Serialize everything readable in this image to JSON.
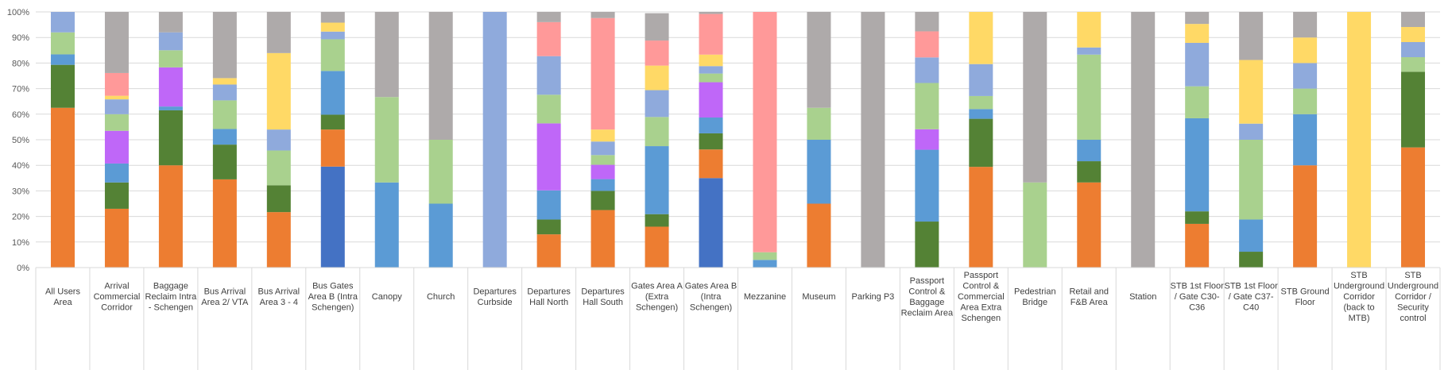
{
  "chart_data": {
    "type": "bar",
    "stacked": true,
    "percent": true,
    "ylim": [
      0,
      100
    ],
    "yticks": [
      "0%",
      "10%",
      "20%",
      "30%",
      "40%",
      "50%",
      "60%",
      "70%",
      "80%",
      "90%",
      "100%"
    ],
    "grid": true,
    "legend": "none",
    "categories": [
      [
        "All Users",
        "Area"
      ],
      [
        "Arrival",
        "Commercial",
        "Corridor"
      ],
      [
        "Baggage",
        "Reclaim Intra",
        "- Schengen"
      ],
      [
        "Bus Arrival",
        "Area 2/ VTA"
      ],
      [
        "Bus Arrival",
        "Area 3 - 4"
      ],
      [
        "Bus Gates",
        "Area B (Intra",
        "Schengen)"
      ],
      [
        "Canopy"
      ],
      [
        "Church"
      ],
      [
        "Departures",
        "Curbside"
      ],
      [
        "Departures",
        "Hall North"
      ],
      [
        "Departures",
        "Hall South"
      ],
      [
        "Gates Area A",
        "(Extra",
        "Schengen)"
      ],
      [
        "Gates Area B",
        "(Intra",
        "Schengen)"
      ],
      [
        "Mezzanine"
      ],
      [
        "Museum"
      ],
      [
        "Parking P3"
      ],
      [
        "Passport",
        "Control &",
        "Baggage",
        "Reclaim Area"
      ],
      [
        "Passport",
        "Control &",
        "Commercial",
        "Area Extra",
        "Schengen"
      ],
      [
        "Pedestrian",
        "Bridge"
      ],
      [
        "Retail and",
        "F&B Area"
      ],
      [
        "Station"
      ],
      [
        "STB 1st Floor",
        "/ Gate C30-",
        "C36"
      ],
      [
        "STB 1st Floor",
        "/ Gate C37-",
        "C40"
      ],
      [
        "STB Ground",
        "Floor"
      ],
      [
        "STB",
        "Underground",
        "Corridor",
        "(back to",
        "MTB)"
      ],
      [
        "STB",
        "Underground",
        "Corridor /",
        "Security",
        "control"
      ]
    ],
    "series_colors": [
      "#4472C4",
      "#ED7D31",
      "#548235",
      "#5B9BD5",
      "#BF67F8",
      "#A9D18E",
      "#8FAADC",
      "#FFD966",
      "#FF9999",
      "#AEAAAA"
    ],
    "series": [
      {
        "values": [
          0,
          0,
          0,
          0,
          0,
          39.5,
          0,
          0,
          0,
          0,
          0,
          0,
          35,
          0,
          0,
          0,
          0,
          0,
          0,
          0,
          0,
          0,
          0,
          0,
          0,
          0
        ]
      },
      {
        "values": [
          62.5,
          23,
          40,
          34.5,
          21.7,
          14.5,
          0,
          0,
          0,
          13,
          22.5,
          16,
          11.2,
          0,
          25,
          0,
          0,
          39.4,
          0,
          33.3,
          0,
          17.1,
          0,
          40,
          0,
          47
        ]
      },
      {
        "values": [
          16.8,
          10.3,
          21.5,
          13.6,
          10.5,
          5.8,
          0,
          0,
          0,
          5.8,
          7.5,
          4.9,
          6.3,
          0,
          0,
          0,
          18,
          18.8,
          0,
          8.3,
          0,
          4.9,
          6.2,
          0,
          0,
          29.6
        ]
      },
      {
        "values": [
          4.1,
          7.4,
          1.5,
          6.1,
          0,
          17.1,
          33.3,
          25,
          0,
          11.4,
          4.6,
          26.6,
          6.2,
          3,
          25,
          0,
          28.1,
          3.8,
          0,
          8.4,
          0,
          36.4,
          12.6,
          20,
          0,
          0
        ]
      },
      {
        "values": [
          0,
          12.8,
          15.3,
          0,
          0,
          0,
          0,
          0,
          0,
          26.2,
          5.6,
          0,
          13.8,
          0,
          0,
          0,
          8,
          0,
          0,
          0,
          0,
          0,
          0,
          0,
          0,
          0
        ]
      },
      {
        "values": [
          8.6,
          6.5,
          6.7,
          11.2,
          13.6,
          12.4,
          33.4,
          25,
          0,
          11.2,
          3.8,
          11.4,
          3.4,
          3,
          12.5,
          0,
          18.1,
          5.1,
          33.3,
          33.3,
          0,
          12.5,
          31.2,
          10,
          0,
          5.7
        ]
      },
      {
        "values": [
          8,
          5.8,
          7,
          6.2,
          8.2,
          3,
          0,
          0,
          100,
          15.1,
          5.3,
          10.5,
          2.9,
          0,
          0,
          0,
          10,
          12.5,
          0,
          2.8,
          0,
          17,
          6.3,
          10,
          0,
          5.9
        ]
      },
      {
        "values": [
          0,
          1.4,
          0,
          2.5,
          29.9,
          3.5,
          0,
          0,
          0,
          0,
          4.7,
          9.6,
          4.5,
          0,
          0,
          0,
          0,
          20.4,
          0,
          13.9,
          0,
          7.4,
          24.9,
          10,
          100,
          5.9
        ]
      },
      {
        "values": [
          0,
          8.9,
          0,
          0,
          0,
          0,
          0,
          0,
          0,
          13.3,
          43.6,
          9.8,
          15.9,
          94,
          0,
          0,
          10.2,
          0,
          0,
          0,
          0,
          0,
          0,
          0,
          0,
          0
        ]
      },
      {
        "values": [
          0,
          23.9,
          8,
          25.9,
          16.1,
          4.2,
          33.3,
          50,
          0,
          4,
          2.4,
          10.7,
          0.8,
          0,
          37.5,
          100,
          7.6,
          0,
          66.7,
          0,
          100,
          4.7,
          18.8,
          10,
          0,
          5.9
        ]
      }
    ]
  }
}
